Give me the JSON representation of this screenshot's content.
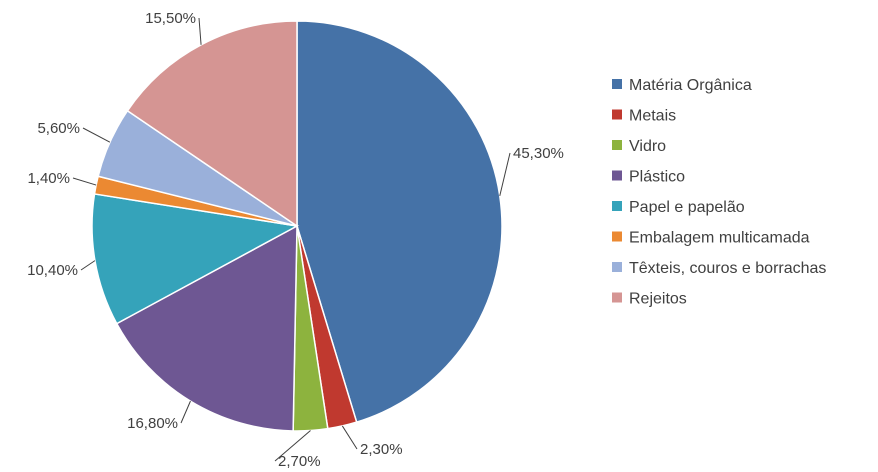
{
  "chart_data": {
    "type": "pie",
    "title": "",
    "legend_position": "right",
    "slices": [
      {
        "label": "Matéria Orgânica",
        "value": 45.3,
        "display": "45,30%",
        "color": "#4572A7"
      },
      {
        "label": "Metais",
        "value": 2.3,
        "display": "2,30%",
        "color": "#C0392F"
      },
      {
        "label": "Vidro",
        "value": 2.7,
        "display": "2,70%",
        "color": "#8DB33E"
      },
      {
        "label": "Plástico",
        "value": 16.8,
        "display": "16,80%",
        "color": "#6E5793"
      },
      {
        "label": "Papel e papelão",
        "value": 10.4,
        "display": "10,40%",
        "color": "#35A3BA"
      },
      {
        "label": "Embalagem multicamada",
        "value": 1.4,
        "display": "1,40%",
        "color": "#EB8932"
      },
      {
        "label": "Têxteis, couros e borrachas",
        "value": 5.6,
        "display": "5,60%",
        "color": "#9AB0DA"
      },
      {
        "label": "Rejeitos",
        "value": 15.5,
        "display": "15,50%",
        "color": "#D59593"
      }
    ]
  }
}
